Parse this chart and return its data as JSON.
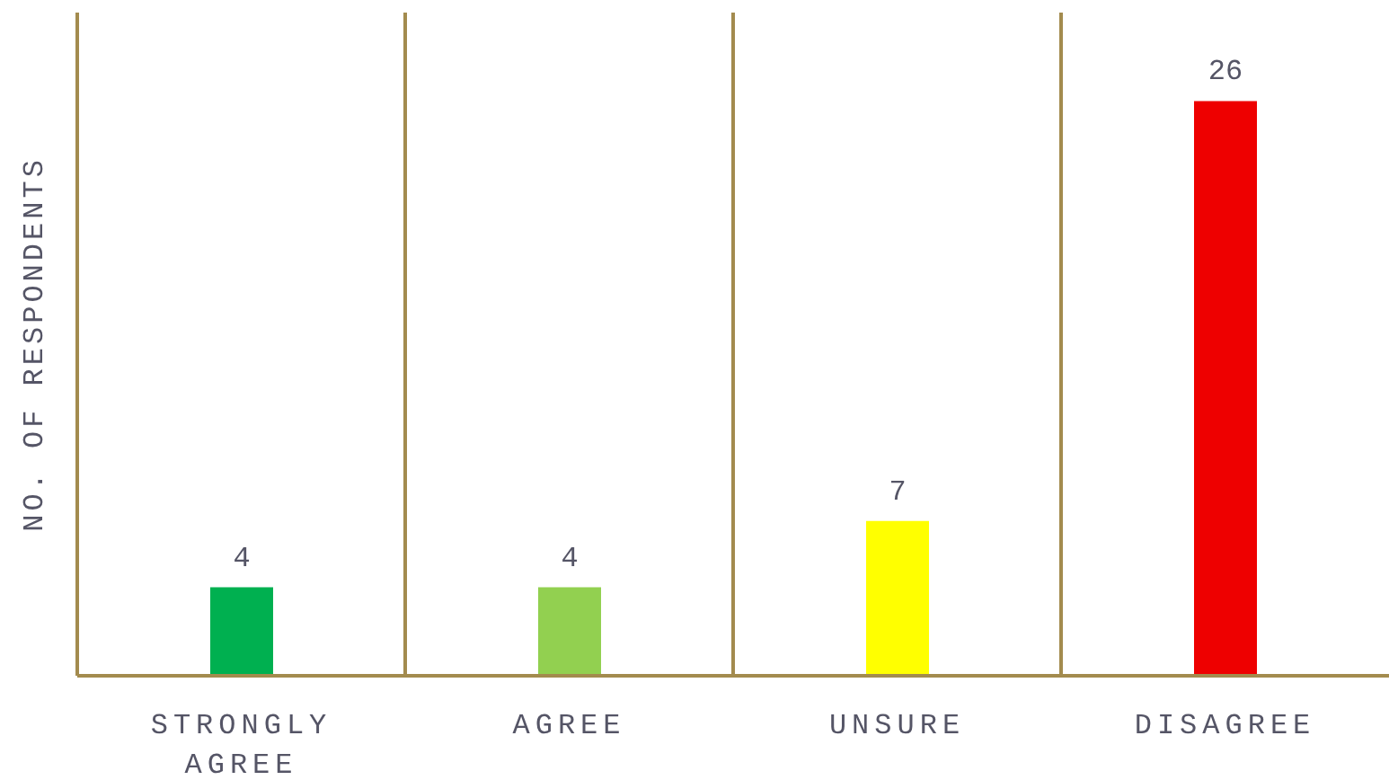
{
  "chart_data": {
    "type": "bar",
    "ylabel": "NO. OF RESPONDENTS",
    "categories": [
      "STRONGLY AGREE",
      "AGREE",
      "UNSURE",
      "DISAGREE"
    ],
    "values": [
      4,
      4,
      7,
      26
    ],
    "colors": [
      "#00b050",
      "#92d050",
      "#ffff00",
      "#ee0000"
    ],
    "ylim": [
      0,
      30
    ],
    "tick_labels": "x",
    "grid": "x",
    "data_labels": true
  }
}
